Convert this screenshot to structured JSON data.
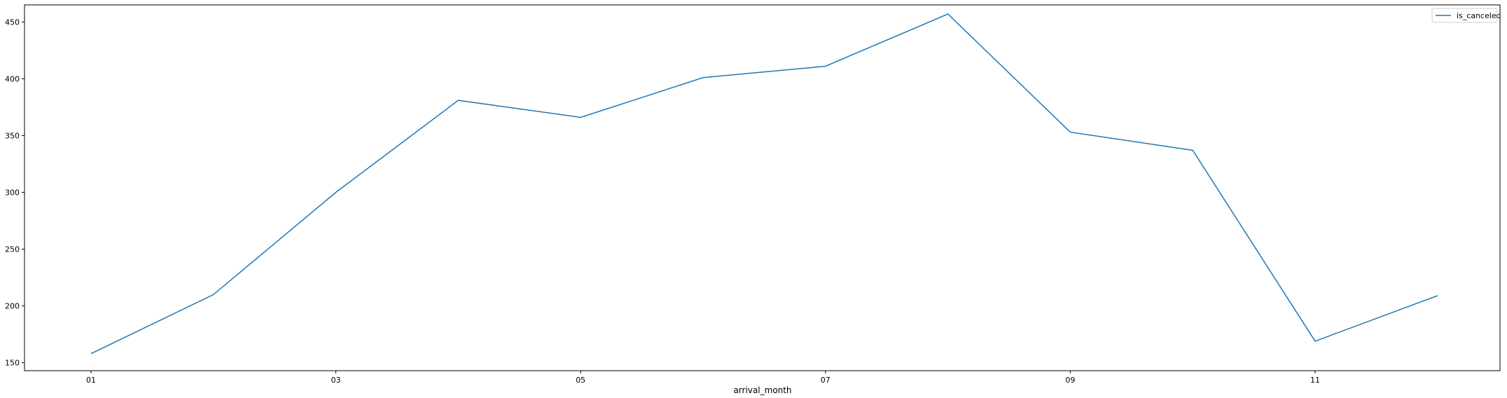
{
  "chart_data": {
    "type": "line",
    "x": [
      "01",
      "02",
      "03",
      "04",
      "05",
      "06",
      "07",
      "08",
      "09",
      "10",
      "11",
      "12"
    ],
    "xticks": [
      "01",
      "03",
      "05",
      "07",
      "09",
      "11"
    ],
    "series": [
      {
        "name": "is_canceled",
        "values": [
          158,
          210,
          300,
          381,
          366,
          401,
          411,
          457,
          353,
          337,
          169,
          209
        ]
      }
    ],
    "xlabel": "arrival_month",
    "ylabel": "",
    "ylim": [
      143,
      465
    ],
    "yticks": [
      150,
      200,
      250,
      300,
      350,
      400,
      450
    ],
    "legend": "top-right",
    "grid": false,
    "colors": {
      "series": "#1f77b4",
      "axes": "#000000"
    }
  }
}
